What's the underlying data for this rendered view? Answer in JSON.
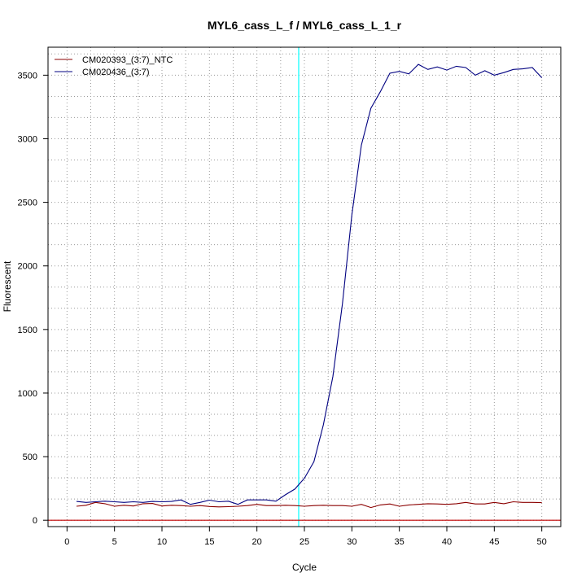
{
  "chart_data": {
    "type": "line",
    "title": "MYL6_cass_L_f / MYL6_cass_L_1_r",
    "xlabel": "Cycle",
    "ylabel": "Fluorescent",
    "xlim": [
      -2,
      52
    ],
    "ylim": [
      -50,
      3720
    ],
    "x_ticks": [
      0,
      5,
      10,
      15,
      20,
      25,
      30,
      35,
      40,
      45,
      50
    ],
    "y_ticks": [
      0,
      500,
      1000,
      1500,
      2000,
      2500,
      3000,
      3500
    ],
    "x_minor_grid": [
      2.5,
      7.5,
      12.5,
      17.5,
      22.5,
      27.5,
      32.5,
      37.5,
      42.5,
      47.5
    ],
    "y_minor_grid": [
      167,
      333,
      667,
      833,
      1167,
      1333,
      1667,
      1833,
      2167,
      2333,
      2667,
      2833,
      3167,
      3333,
      3667
    ],
    "grid": true,
    "legend_position": "top-left",
    "threshold": {
      "cycle": 24.4,
      "color": "#00ffff"
    },
    "baseline": {
      "value": 0,
      "color": "#c00000"
    },
    "x": [
      1,
      2,
      3,
      4,
      5,
      6,
      7,
      8,
      9,
      10,
      11,
      12,
      13,
      14,
      15,
      16,
      17,
      18,
      19,
      20,
      21,
      22,
      23,
      24,
      25,
      26,
      27,
      28,
      29,
      30,
      31,
      32,
      33,
      34,
      35,
      36,
      37,
      38,
      39,
      40,
      41,
      42,
      43,
      44,
      45,
      46,
      47,
      48,
      49,
      50
    ],
    "series": [
      {
        "name": "CM020393_(3:7)_NTC",
        "color": "#8b0000",
        "values": [
          110,
          118,
          140,
          130,
          110,
          118,
          112,
          130,
          132,
          112,
          118,
          115,
          110,
          115,
          108,
          105,
          107,
          110,
          115,
          125,
          115,
          115,
          118,
          115,
          110,
          115,
          118,
          115,
          115,
          110,
          125,
          100,
          120,
          128,
          110,
          120,
          125,
          130,
          128,
          125,
          130,
          140,
          128,
          128,
          140,
          130,
          145,
          140,
          140,
          138
        ]
      },
      {
        "name": "CM020436_(3:7)",
        "color": "#000080",
        "values": [
          148,
          140,
          145,
          150,
          145,
          140,
          145,
          140,
          148,
          145,
          148,
          160,
          125,
          140,
          158,
          145,
          150,
          125,
          160,
          160,
          160,
          150,
          200,
          245,
          330,
          460,
          750,
          1130,
          1700,
          2400,
          2950,
          3240,
          3370,
          3515,
          3530,
          3510,
          3585,
          3545,
          3565,
          3540,
          3570,
          3560,
          3500,
          3535,
          3500,
          3520,
          3545,
          3550,
          3560,
          3480
        ]
      }
    ]
  }
}
